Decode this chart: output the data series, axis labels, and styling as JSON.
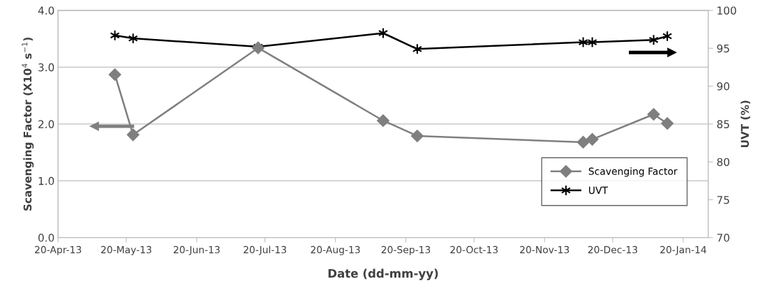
{
  "chart_data": {
    "type": "line",
    "xlabel": "Date (dd-mm-yy)",
    "ylabel": "Scavenging Factor (X10$^{4}$ s$^{−1}$)",
    "y2label": "UVT (%)",
    "x": [
      "2013-05-15",
      "2013-05-23",
      "2013-07-17",
      "2013-09-10",
      "2013-09-25",
      "2013-12-07",
      "2013-12-11",
      "2014-01-07",
      "2014-01-13"
    ],
    "series": [
      {
        "name": "Scavenging Factor",
        "color": "#7f7f7f",
        "marker": "diamond",
        "values": [
          2.87,
          1.81,
          3.34,
          2.06,
          1.79,
          1.68,
          1.73,
          2.17,
          2.01
        ]
      },
      {
        "name": "UVT",
        "color": "#000000",
        "marker": "cross",
        "axis": "y2",
        "values": [
          96.7,
          96.3,
          95.2,
          97.0,
          94.9,
          95.8,
          95.8,
          96.1,
          96.6
        ]
      }
    ],
    "xlim": [
      "2013-04-20",
      "2014-01-31"
    ],
    "xticks": [
      {
        "value": "2013-04-20",
        "label": "20-Apr-13"
      },
      {
        "value": "2013-05-20",
        "label": "20-May-13"
      },
      {
        "value": "2013-06-20",
        "label": "20-Jun-13"
      },
      {
        "value": "2013-07-20",
        "label": "20-Jul-13"
      },
      {
        "value": "2013-08-20",
        "label": "20-Aug-13"
      },
      {
        "value": "2013-09-20",
        "label": "20-Sep-13"
      },
      {
        "value": "2013-10-20",
        "label": "20-Oct-13"
      },
      {
        "value": "2013-11-20",
        "label": "20-Nov-13"
      },
      {
        "value": "2013-12-20",
        "label": "20-Dec-13"
      },
      {
        "value": "2014-01-20",
        "label": "20-Jan-14"
      }
    ],
    "ylim": [
      0,
      4
    ],
    "yticks": [
      {
        "value": 0,
        "label": "0.0"
      },
      {
        "value": 1,
        "label": "1.0"
      },
      {
        "value": 2,
        "label": "2.0"
      },
      {
        "value": 3,
        "label": "3.0"
      },
      {
        "value": 4,
        "label": "4.0"
      }
    ],
    "y2lim": [
      70,
      100
    ],
    "y2ticks": [
      70,
      75,
      80,
      85,
      90,
      95,
      100
    ],
    "grid": "y",
    "legend": "bottom right",
    "line_style": "solid"
  }
}
